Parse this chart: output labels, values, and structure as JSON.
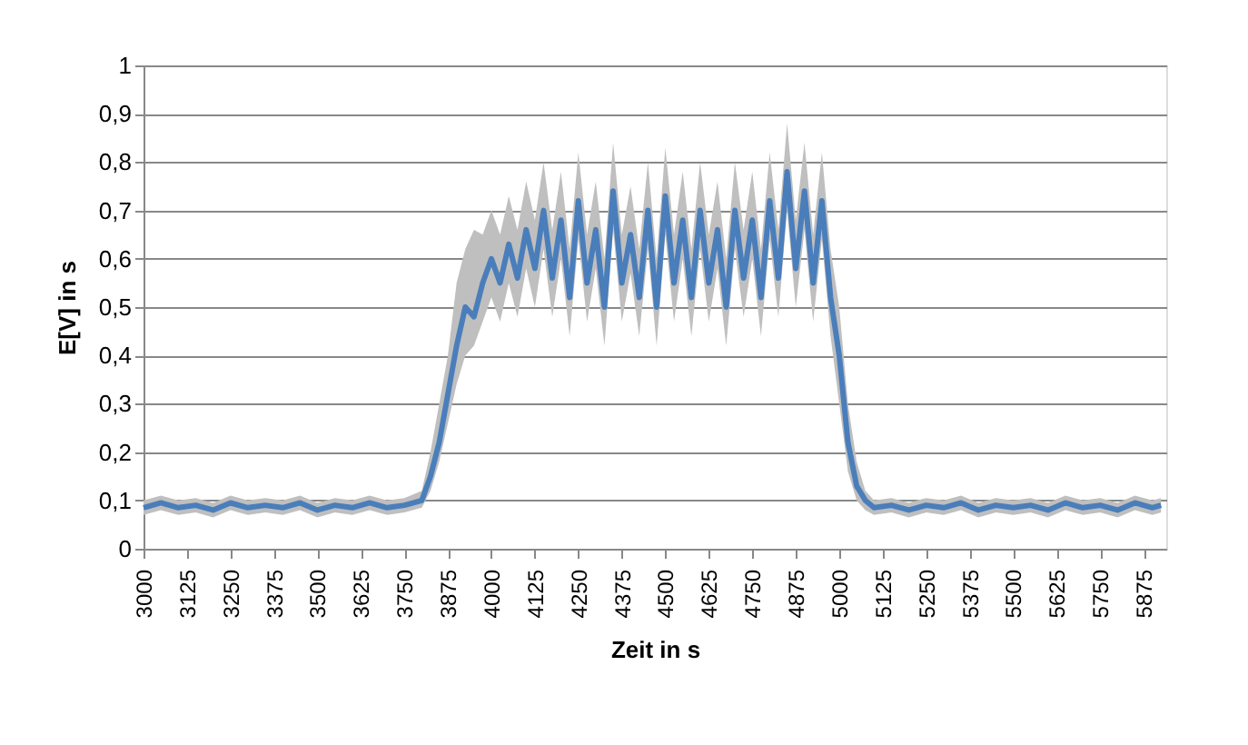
{
  "chart_data": {
    "type": "line",
    "xlabel": "Zeit in s",
    "ylabel": "E[V] in s",
    "x": [
      3000,
      3050,
      3100,
      3150,
      3200,
      3250,
      3300,
      3350,
      3400,
      3450,
      3500,
      3550,
      3600,
      3650,
      3700,
      3750,
      3800,
      3825,
      3850,
      3875,
      3900,
      3925,
      3950,
      3975,
      4000,
      4025,
      4050,
      4075,
      4100,
      4125,
      4150,
      4175,
      4200,
      4225,
      4250,
      4275,
      4300,
      4325,
      4350,
      4375,
      4400,
      4425,
      4450,
      4475,
      4500,
      4525,
      4550,
      4575,
      4600,
      4625,
      4650,
      4675,
      4700,
      4725,
      4750,
      4775,
      4800,
      4825,
      4850,
      4875,
      4900,
      4925,
      4950,
      4975,
      5000,
      5025,
      5050,
      5075,
      5100,
      5150,
      5200,
      5250,
      5300,
      5350,
      5400,
      5450,
      5500,
      5550,
      5600,
      5650,
      5700,
      5750,
      5800,
      5850,
      5900,
      5925
    ],
    "series": [
      {
        "color": "#4a7ebb",
        "values": [
          0.085,
          0.095,
          0.085,
          0.09,
          0.08,
          0.095,
          0.085,
          0.09,
          0.085,
          0.095,
          0.08,
          0.09,
          0.085,
          0.095,
          0.085,
          0.09,
          0.1,
          0.15,
          0.22,
          0.32,
          0.42,
          0.5,
          0.48,
          0.55,
          0.6,
          0.55,
          0.63,
          0.56,
          0.66,
          0.58,
          0.7,
          0.56,
          0.68,
          0.52,
          0.72,
          0.55,
          0.66,
          0.5,
          0.74,
          0.55,
          0.65,
          0.52,
          0.7,
          0.5,
          0.73,
          0.55,
          0.68,
          0.52,
          0.7,
          0.55,
          0.66,
          0.5,
          0.7,
          0.56,
          0.68,
          0.52,
          0.72,
          0.56,
          0.78,
          0.58,
          0.74,
          0.55,
          0.72,
          0.52,
          0.4,
          0.22,
          0.13,
          0.1,
          0.085,
          0.09,
          0.08,
          0.09,
          0.085,
          0.095,
          0.08,
          0.09,
          0.085,
          0.09,
          0.08,
          0.095,
          0.085,
          0.09,
          0.08,
          0.095,
          0.085,
          0.09
        ],
        "upper": [
          0.1,
          0.11,
          0.1,
          0.105,
          0.095,
          0.11,
          0.1,
          0.105,
          0.1,
          0.11,
          0.095,
          0.105,
          0.1,
          0.11,
          0.1,
          0.105,
          0.12,
          0.2,
          0.3,
          0.4,
          0.55,
          0.62,
          0.66,
          0.65,
          0.7,
          0.65,
          0.73,
          0.66,
          0.76,
          0.68,
          0.8,
          0.66,
          0.78,
          0.62,
          0.82,
          0.65,
          0.76,
          0.6,
          0.84,
          0.65,
          0.75,
          0.62,
          0.8,
          0.6,
          0.83,
          0.65,
          0.78,
          0.62,
          0.8,
          0.65,
          0.76,
          0.6,
          0.8,
          0.66,
          0.78,
          0.62,
          0.82,
          0.66,
          0.88,
          0.68,
          0.84,
          0.65,
          0.82,
          0.62,
          0.5,
          0.3,
          0.18,
          0.12,
          0.1,
          0.105,
          0.095,
          0.105,
          0.1,
          0.11,
          0.095,
          0.105,
          0.1,
          0.105,
          0.095,
          0.11,
          0.1,
          0.105,
          0.095,
          0.11,
          0.1,
          0.105
        ],
        "lower": [
          0.07,
          0.08,
          0.07,
          0.075,
          0.065,
          0.08,
          0.07,
          0.075,
          0.07,
          0.08,
          0.065,
          0.075,
          0.07,
          0.08,
          0.07,
          0.075,
          0.085,
          0.12,
          0.18,
          0.26,
          0.34,
          0.4,
          0.42,
          0.47,
          0.52,
          0.47,
          0.55,
          0.48,
          0.58,
          0.5,
          0.62,
          0.48,
          0.6,
          0.44,
          0.64,
          0.47,
          0.58,
          0.42,
          0.66,
          0.47,
          0.57,
          0.44,
          0.62,
          0.42,
          0.65,
          0.47,
          0.6,
          0.44,
          0.62,
          0.47,
          0.58,
          0.42,
          0.62,
          0.48,
          0.6,
          0.44,
          0.64,
          0.48,
          0.7,
          0.5,
          0.66,
          0.47,
          0.64,
          0.44,
          0.3,
          0.16,
          0.1,
          0.08,
          0.07,
          0.075,
          0.065,
          0.075,
          0.07,
          0.08,
          0.065,
          0.075,
          0.07,
          0.075,
          0.065,
          0.08,
          0.07,
          0.075,
          0.065,
          0.08,
          0.07,
          0.075
        ]
      }
    ],
    "xlim": [
      3000,
      5940
    ],
    "xticks": [
      3000,
      3125,
      3250,
      3375,
      3500,
      3625,
      3750,
      3875,
      4000,
      4125,
      4250,
      4375,
      4500,
      4625,
      4750,
      4875,
      5000,
      5125,
      5250,
      5375,
      5500,
      5625,
      5750,
      5875
    ],
    "ylim": [
      0,
      1
    ],
    "yticks": [
      0,
      {
        "value": 0.1,
        "label": "0,1"
      },
      {
        "value": 0.2,
        "label": "0,2"
      },
      {
        "value": 0.3,
        "label": "0,3"
      },
      {
        "value": 0.4,
        "label": "0,4"
      },
      {
        "value": 0.5,
        "label": "0,5"
      },
      {
        "value": 0.6,
        "label": "0,6"
      },
      {
        "value": 0.7,
        "label": "0,7"
      },
      {
        "value": 0.8,
        "label": "0,8"
      },
      {
        "value": 0.9,
        "label": "0,9"
      },
      1
    ],
    "grid": "y",
    "marker": "none",
    "line_style": "solid"
  }
}
